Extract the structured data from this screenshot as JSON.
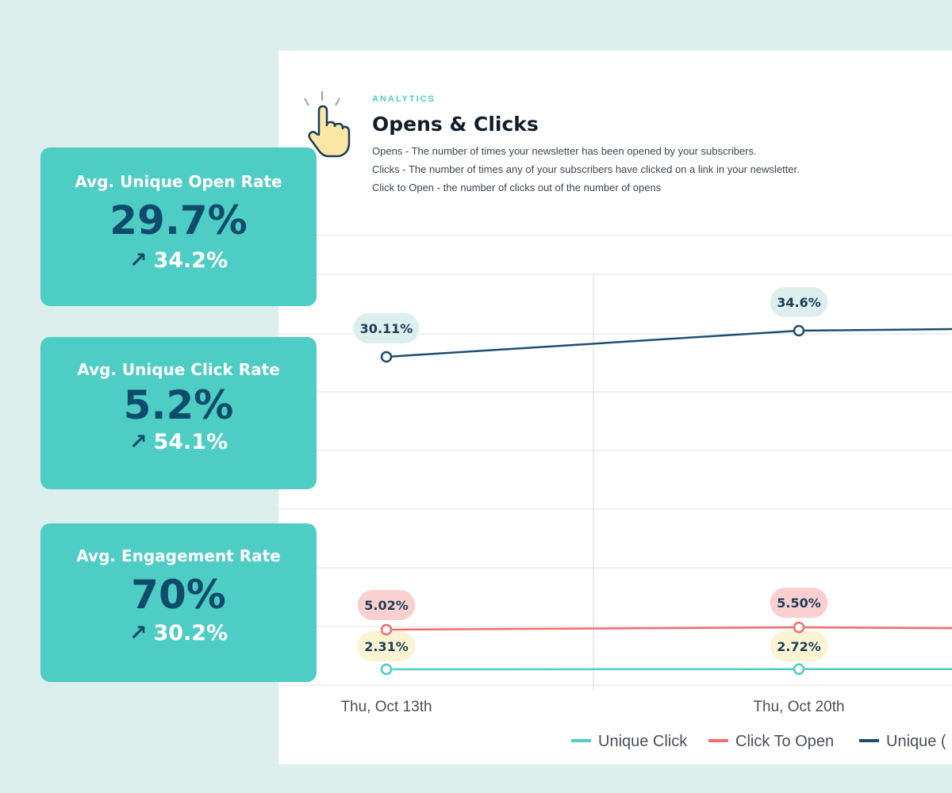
{
  "header": {
    "eyebrow": "ANALYTICS",
    "title": "Opens & Clicks",
    "descriptions": [
      "Opens - The number of times your newsletter has been opened by your subscribers.",
      "Clicks - The number of times any of your subscribers have clicked on a link in your newsletter.",
      "Click to Open - the number of clicks out of the number of opens"
    ]
  },
  "stats": [
    {
      "title": "Avg. Unique Open Rate",
      "value": "29.7%",
      "delta_icon": "arrow-up-right-icon",
      "arrow": "↗",
      "delta": "34.2%"
    },
    {
      "title": "Avg. Unique Click Rate",
      "value": "5.2%",
      "delta_icon": "arrow-up-right-icon",
      "arrow": "↗",
      "delta": "54.1%"
    },
    {
      "title": "Avg. Engagement Rate",
      "value": "70%",
      "delta_icon": "arrow-up-right-icon",
      "arrow": "↗",
      "delta": "30.2%"
    }
  ],
  "chart_data": {
    "type": "line",
    "categories": [
      "Thu, Oct 13th",
      "Thu, Oct 20th"
    ],
    "series": [
      {
        "name": "Unique Click",
        "color": "#4ecdc4",
        "pill_color": "#fbf4d2",
        "values": [
          2.31,
          2.72
        ],
        "labels": [
          "2.31%",
          "2.72%"
        ]
      },
      {
        "name": "Click To Open",
        "color": "#f26d6d",
        "pill_color": "#f9d0cf",
        "values": [
          5.02,
          5.5
        ],
        "labels": [
          "5.02%",
          "5.50%"
        ]
      },
      {
        "name": "Unique Open",
        "color": "#1c4f6e",
        "pill_color": "#dcefec",
        "values": [
          30.11,
          34.6
        ],
        "labels": [
          "30.11%",
          "34.6%"
        ]
      }
    ],
    "legend_visible": [
      "Unique Click",
      "Click To Open",
      "Unique ("
    ],
    "title": "Opens & Clicks",
    "grid": true
  },
  "colors": {
    "accent": "#4ecdc4",
    "dark": "#0f4c6b",
    "background": "#dcefec"
  }
}
